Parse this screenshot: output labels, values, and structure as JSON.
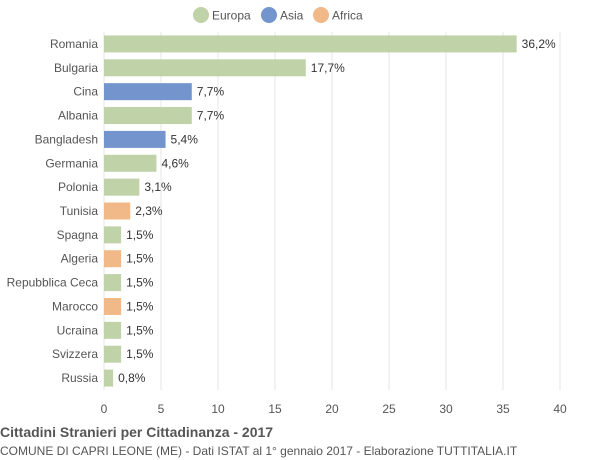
{
  "chart_data": {
    "type": "bar",
    "orientation": "horizontal",
    "categories": [
      "Romania",
      "Bulgaria",
      "Cina",
      "Albania",
      "Bangladesh",
      "Germania",
      "Polonia",
      "Tunisia",
      "Spagna",
      "Algeria",
      "Repubblica Ceca",
      "Marocco",
      "Ucraina",
      "Svizzera",
      "Russia"
    ],
    "values": [
      36.2,
      17.7,
      7.7,
      7.7,
      5.4,
      4.6,
      3.1,
      2.3,
      1.5,
      1.5,
      1.5,
      1.5,
      1.5,
      1.5,
      0.8
    ],
    "value_labels": [
      "36,2%",
      "17,7%",
      "7,7%",
      "7,7%",
      "5,4%",
      "4,6%",
      "3,1%",
      "2,3%",
      "1,5%",
      "1,5%",
      "1,5%",
      "1,5%",
      "1,5%",
      "1,5%",
      "0,8%"
    ],
    "groups": [
      "Europa",
      "Europa",
      "Asia",
      "Europa",
      "Asia",
      "Europa",
      "Europa",
      "Africa",
      "Europa",
      "Africa",
      "Europa",
      "Africa",
      "Europa",
      "Europa",
      "Europa"
    ],
    "legend": [
      {
        "name": "Europa",
        "color": "#c0d2a8"
      },
      {
        "name": "Asia",
        "color": "#7394cd"
      },
      {
        "name": "Africa",
        "color": "#f0b987"
      }
    ],
    "legend_position": "top",
    "xlim": [
      0,
      40
    ],
    "xticks": [
      0,
      5,
      10,
      15,
      20,
      25,
      30,
      35,
      40
    ],
    "grid": true
  },
  "footer": {
    "title": "Cittadini Stranieri per Cittadinanza - 2017",
    "subtitle": "COMUNE DI CAPRI LEONE (ME) - Dati ISTAT al 1° gennaio 2017 - Elaborazione TUTTITALIA.IT"
  }
}
